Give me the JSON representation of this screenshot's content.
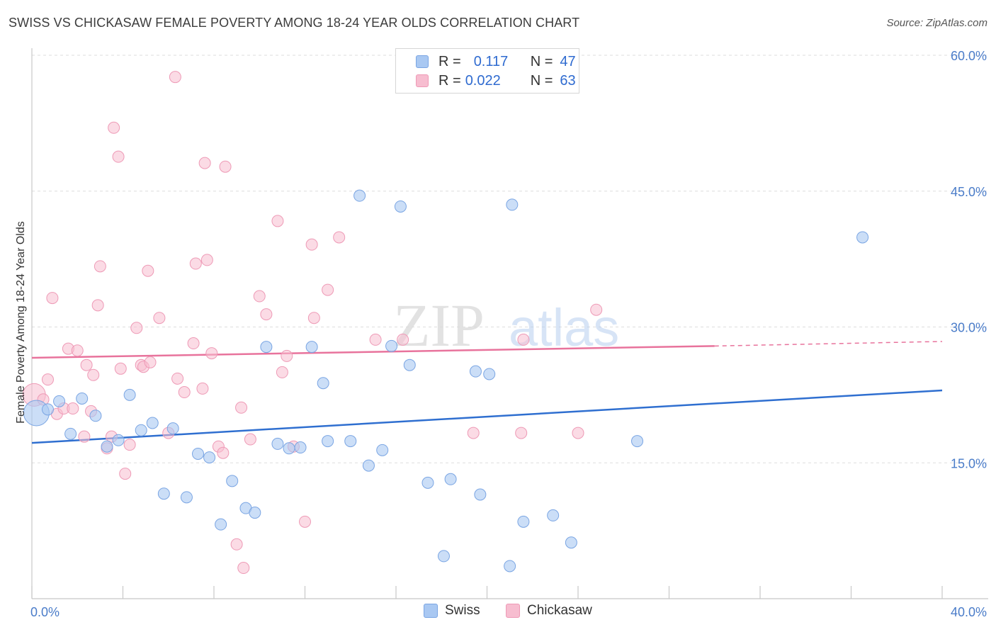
{
  "title": "SWISS VS CHICKASAW FEMALE POVERTY AMONG 18-24 YEAR OLDS CORRELATION CHART",
  "source": "Source: ZipAtlas.com",
  "watermark": {
    "zip": "ZIP",
    "atlas": "atlas"
  },
  "legend": {
    "rows": [
      {
        "r_label": "R =",
        "r_value": "0.117",
        "n_label": "N =",
        "n_value": "47"
      },
      {
        "r_label": "R =",
        "r_value": "0.022",
        "n_label": "N =",
        "n_value": "63"
      }
    ]
  },
  "bottom_legend": [
    "Swiss",
    "Chickasaw"
  ],
  "colors": {
    "swiss_fill": "#a9c8f2",
    "swiss_stroke": "#7aa5e3",
    "swiss_line": "#2f6fd0",
    "chickasaw_fill": "#f7bdd0",
    "chickasaw_stroke": "#ee9ab6",
    "chickasaw_line": "#e8739c",
    "tick_text": "#4a7cc9",
    "grid": "#dddddd"
  },
  "chart_data": {
    "type": "scatter",
    "title": "SWISS VS CHICKASAW FEMALE POVERTY AMONG 18-24 YEAR OLDS CORRELATION CHART",
    "xlabel": "",
    "ylabel": "Female Poverty Among 18-24 Year Olds",
    "xlim": [
      0,
      40
    ],
    "ylim": [
      0,
      60
    ],
    "x_tick_labels": [
      "0.0%",
      "40.0%"
    ],
    "y_ticks": [
      15,
      30,
      45,
      60
    ],
    "y_tick_labels": [
      "15.0%",
      "30.0%",
      "45.0%",
      "60.0%"
    ],
    "grid": true,
    "legend_position": "top-center",
    "series": [
      {
        "name": "Swiss",
        "r": 0.117,
        "n": 47,
        "trend": {
          "x": [
            0,
            40
          ],
          "y": [
            17.2,
            23.0
          ]
        },
        "points": [
          {
            "x": 0.2,
            "y": 20.5,
            "big": true
          },
          {
            "x": 0.7,
            "y": 20.9
          },
          {
            "x": 1.2,
            "y": 21.8
          },
          {
            "x": 1.7,
            "y": 18.2
          },
          {
            "x": 2.2,
            "y": 22.1
          },
          {
            "x": 2.8,
            "y": 20.2
          },
          {
            "x": 3.3,
            "y": 16.8
          },
          {
            "x": 3.8,
            "y": 17.5
          },
          {
            "x": 4.3,
            "y": 22.5
          },
          {
            "x": 4.8,
            "y": 18.6
          },
          {
            "x": 5.3,
            "y": 19.4
          },
          {
            "x": 5.8,
            "y": 11.6
          },
          {
            "x": 6.2,
            "y": 18.8
          },
          {
            "x": 6.8,
            "y": 11.2
          },
          {
            "x": 7.3,
            "y": 16.0
          },
          {
            "x": 7.8,
            "y": 15.6
          },
          {
            "x": 8.3,
            "y": 8.2
          },
          {
            "x": 8.8,
            "y": 13.0
          },
          {
            "x": 9.4,
            "y": 10.0
          },
          {
            "x": 9.8,
            "y": 9.5
          },
          {
            "x": 10.3,
            "y": 27.8
          },
          {
            "x": 10.8,
            "y": 17.1
          },
          {
            "x": 11.3,
            "y": 16.6
          },
          {
            "x": 11.8,
            "y": 16.7
          },
          {
            "x": 12.3,
            "y": 27.8
          },
          {
            "x": 12.8,
            "y": 23.8
          },
          {
            "x": 13.0,
            "y": 17.4
          },
          {
            "x": 14.0,
            "y": 17.4
          },
          {
            "x": 14.4,
            "y": 44.5
          },
          {
            "x": 14.8,
            "y": 14.7
          },
          {
            "x": 15.4,
            "y": 16.4
          },
          {
            "x": 15.8,
            "y": 27.9
          },
          {
            "x": 16.2,
            "y": 43.3
          },
          {
            "x": 16.6,
            "y": 25.8
          },
          {
            "x": 17.4,
            "y": 12.8
          },
          {
            "x": 18.1,
            "y": 4.7
          },
          {
            "x": 18.4,
            "y": 13.2
          },
          {
            "x": 19.5,
            "y": 25.1
          },
          {
            "x": 19.7,
            "y": 11.5
          },
          {
            "x": 20.1,
            "y": 24.8
          },
          {
            "x": 21.0,
            "y": 3.6
          },
          {
            "x": 21.1,
            "y": 43.5
          },
          {
            "x": 21.6,
            "y": 8.5
          },
          {
            "x": 22.9,
            "y": 9.2
          },
          {
            "x": 23.7,
            "y": 6.2
          },
          {
            "x": 26.6,
            "y": 17.4
          },
          {
            "x": 36.5,
            "y": 39.9
          }
        ]
      },
      {
        "name": "Chickasaw",
        "r": 0.022,
        "n": 63,
        "trend": {
          "x": [
            0,
            30
          ],
          "y": [
            26.6,
            27.9
          ]
        },
        "trend_dashed": {
          "x": [
            30,
            40
          ],
          "y": [
            27.9,
            28.4
          ]
        },
        "points": [
          {
            "x": 0.1,
            "y": 22.5,
            "big": true
          },
          {
            "x": 0.5,
            "y": 22.0
          },
          {
            "x": 0.7,
            "y": 24.2
          },
          {
            "x": 0.9,
            "y": 33.2
          },
          {
            "x": 1.1,
            "y": 20.4
          },
          {
            "x": 1.4,
            "y": 21.0
          },
          {
            "x": 1.6,
            "y": 27.6
          },
          {
            "x": 1.8,
            "y": 21.0
          },
          {
            "x": 2.0,
            "y": 27.4
          },
          {
            "x": 2.3,
            "y": 17.9
          },
          {
            "x": 2.4,
            "y": 25.8
          },
          {
            "x": 2.6,
            "y": 20.7
          },
          {
            "x": 2.7,
            "y": 24.7
          },
          {
            "x": 2.9,
            "y": 32.4
          },
          {
            "x": 3.0,
            "y": 36.7
          },
          {
            "x": 3.3,
            "y": 16.6
          },
          {
            "x": 3.5,
            "y": 17.9
          },
          {
            "x": 3.6,
            "y": 52.0
          },
          {
            "x": 3.8,
            "y": 48.8
          },
          {
            "x": 3.9,
            "y": 25.4
          },
          {
            "x": 4.1,
            "y": 13.8
          },
          {
            "x": 4.3,
            "y": 17.0
          },
          {
            "x": 4.6,
            "y": 29.9
          },
          {
            "x": 4.8,
            "y": 25.8
          },
          {
            "x": 4.9,
            "y": 25.6
          },
          {
            "x": 5.1,
            "y": 36.2
          },
          {
            "x": 5.2,
            "y": 26.1
          },
          {
            "x": 5.6,
            "y": 31.0
          },
          {
            "x": 6.0,
            "y": 18.3
          },
          {
            "x": 6.3,
            "y": 57.6
          },
          {
            "x": 6.4,
            "y": 24.3
          },
          {
            "x": 6.7,
            "y": 22.8
          },
          {
            "x": 7.1,
            "y": 28.2
          },
          {
            "x": 7.2,
            "y": 37.0
          },
          {
            "x": 7.5,
            "y": 23.2
          },
          {
            "x": 7.6,
            "y": 48.1
          },
          {
            "x": 7.7,
            "y": 37.4
          },
          {
            "x": 7.9,
            "y": 27.1
          },
          {
            "x": 8.2,
            "y": 16.8
          },
          {
            "x": 8.4,
            "y": 16.1
          },
          {
            "x": 8.5,
            "y": 47.7
          },
          {
            "x": 9.0,
            "y": 6.0
          },
          {
            "x": 9.2,
            "y": 21.1
          },
          {
            "x": 9.3,
            "y": 3.4
          },
          {
            "x": 9.6,
            "y": 17.6
          },
          {
            "x": 10.0,
            "y": 33.4
          },
          {
            "x": 10.3,
            "y": 31.4
          },
          {
            "x": 10.8,
            "y": 41.7
          },
          {
            "x": 11.0,
            "y": 25.0
          },
          {
            "x": 11.2,
            "y": 26.8
          },
          {
            "x": 11.5,
            "y": 16.8
          },
          {
            "x": 12.0,
            "y": 8.5
          },
          {
            "x": 12.3,
            "y": 39.1
          },
          {
            "x": 12.4,
            "y": 31.0
          },
          {
            "x": 13.0,
            "y": 34.1
          },
          {
            "x": 13.5,
            "y": 39.9
          },
          {
            "x": 15.1,
            "y": 28.6
          },
          {
            "x": 16.3,
            "y": 28.6
          },
          {
            "x": 19.4,
            "y": 18.3
          },
          {
            "x": 21.5,
            "y": 18.3
          },
          {
            "x": 21.6,
            "y": 28.6
          },
          {
            "x": 24.0,
            "y": 18.3
          },
          {
            "x": 24.8,
            "y": 31.9
          }
        ]
      }
    ]
  }
}
